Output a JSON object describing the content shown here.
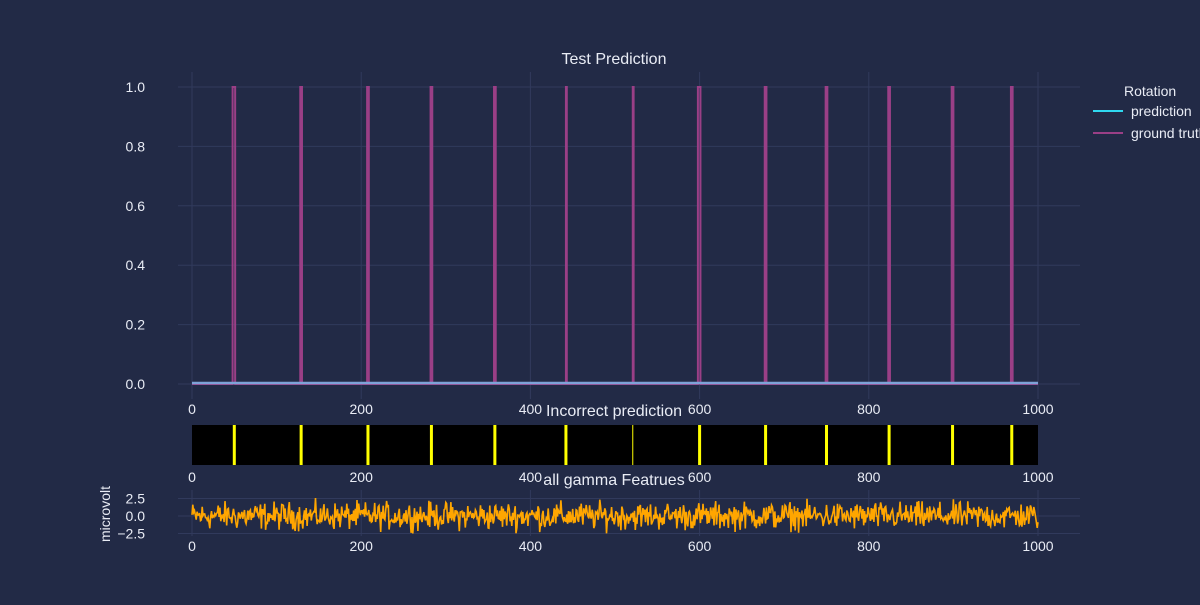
{
  "colors": {
    "background": "#222a46",
    "grid": "#313a5c",
    "text": "#e9ecf5",
    "prediction": "#2fd8f0",
    "prediction_on_plot": "#7ea3d8",
    "ground_truth": "#9a3f86",
    "incorrect_bar": "#ffff00",
    "incorrect_bg": "#000000",
    "gamma": "#ffa600"
  },
  "legend": {
    "title": "Rotation",
    "items": [
      {
        "label": "prediction",
        "color": "#2fd8f0"
      },
      {
        "label": "ground truth",
        "color": "#9a3f86"
      }
    ]
  },
  "chart_data": [
    {
      "type": "line",
      "title": "Test Prediction",
      "xlabel": "",
      "ylabel": "",
      "xlim": [
        0,
        1000
      ],
      "ylim": [
        -0.0,
        1.0
      ],
      "x_ticks": [
        0,
        200,
        400,
        600,
        800,
        1000
      ],
      "y_ticks": [
        0.0,
        0.2,
        0.4,
        0.6,
        0.8,
        1.0
      ],
      "y_tick_labels": [
        "0.0",
        "0.2",
        "0.4",
        "0.6",
        "0.8",
        "1.0"
      ],
      "grid": true,
      "legend_position": "top-right",
      "series": [
        {
          "name": "prediction",
          "description": "constant 0 over the full range",
          "x": [
            0,
            1000
          ],
          "y": [
            0,
            0
          ]
        },
        {
          "name": "ground truth",
          "description": "0 everywhere except pulses equal to 1 over the listed intervals",
          "pulse_intervals": [
            [
              48,
              51
            ],
            [
              128,
              130
            ],
            [
              207,
              209
            ],
            [
              282,
              284
            ],
            [
              357,
              359
            ],
            [
              442,
              443
            ],
            [
              521,
              522
            ],
            [
              598,
              601
            ],
            [
              677,
              679
            ],
            [
              749,
              751
            ],
            [
              823,
              825
            ],
            [
              898,
              900
            ],
            [
              968,
              970
            ]
          ],
          "pulse_value": 1
        }
      ]
    },
    {
      "type": "heatmap",
      "title": "Incorrect prediction",
      "xlim": [
        0,
        1000
      ],
      "x_ticks": [
        0,
        200,
        400,
        600,
        800,
        1000
      ],
      "description": "binary heatmap: 1 where prediction is incorrect, 0 elsewhere",
      "incorrect_positions": [
        50,
        129,
        208,
        283,
        358,
        442,
        521,
        600,
        678,
        750,
        824,
        899,
        969
      ]
    },
    {
      "type": "line",
      "title": "all gamma Featrues",
      "xlabel": "",
      "ylabel": "microvolt",
      "xlim": [
        0,
        1000
      ],
      "ylim": [
        -2.5,
        2.5
      ],
      "x_ticks": [
        0,
        200,
        400,
        600,
        800,
        1000
      ],
      "y_ticks": [
        -2.5,
        0,
        2.5
      ],
      "y_tick_labels": [
        "−2.5",
        "0.0",
        "2.5"
      ],
      "grid": true,
      "series": [
        {
          "name": "",
          "description": "noisy signal around 0, approx range -2.5 to 3",
          "sample_count": 1001,
          "mean": 0,
          "approx_min": -2.5,
          "approx_max": 3.0
        }
      ]
    }
  ]
}
